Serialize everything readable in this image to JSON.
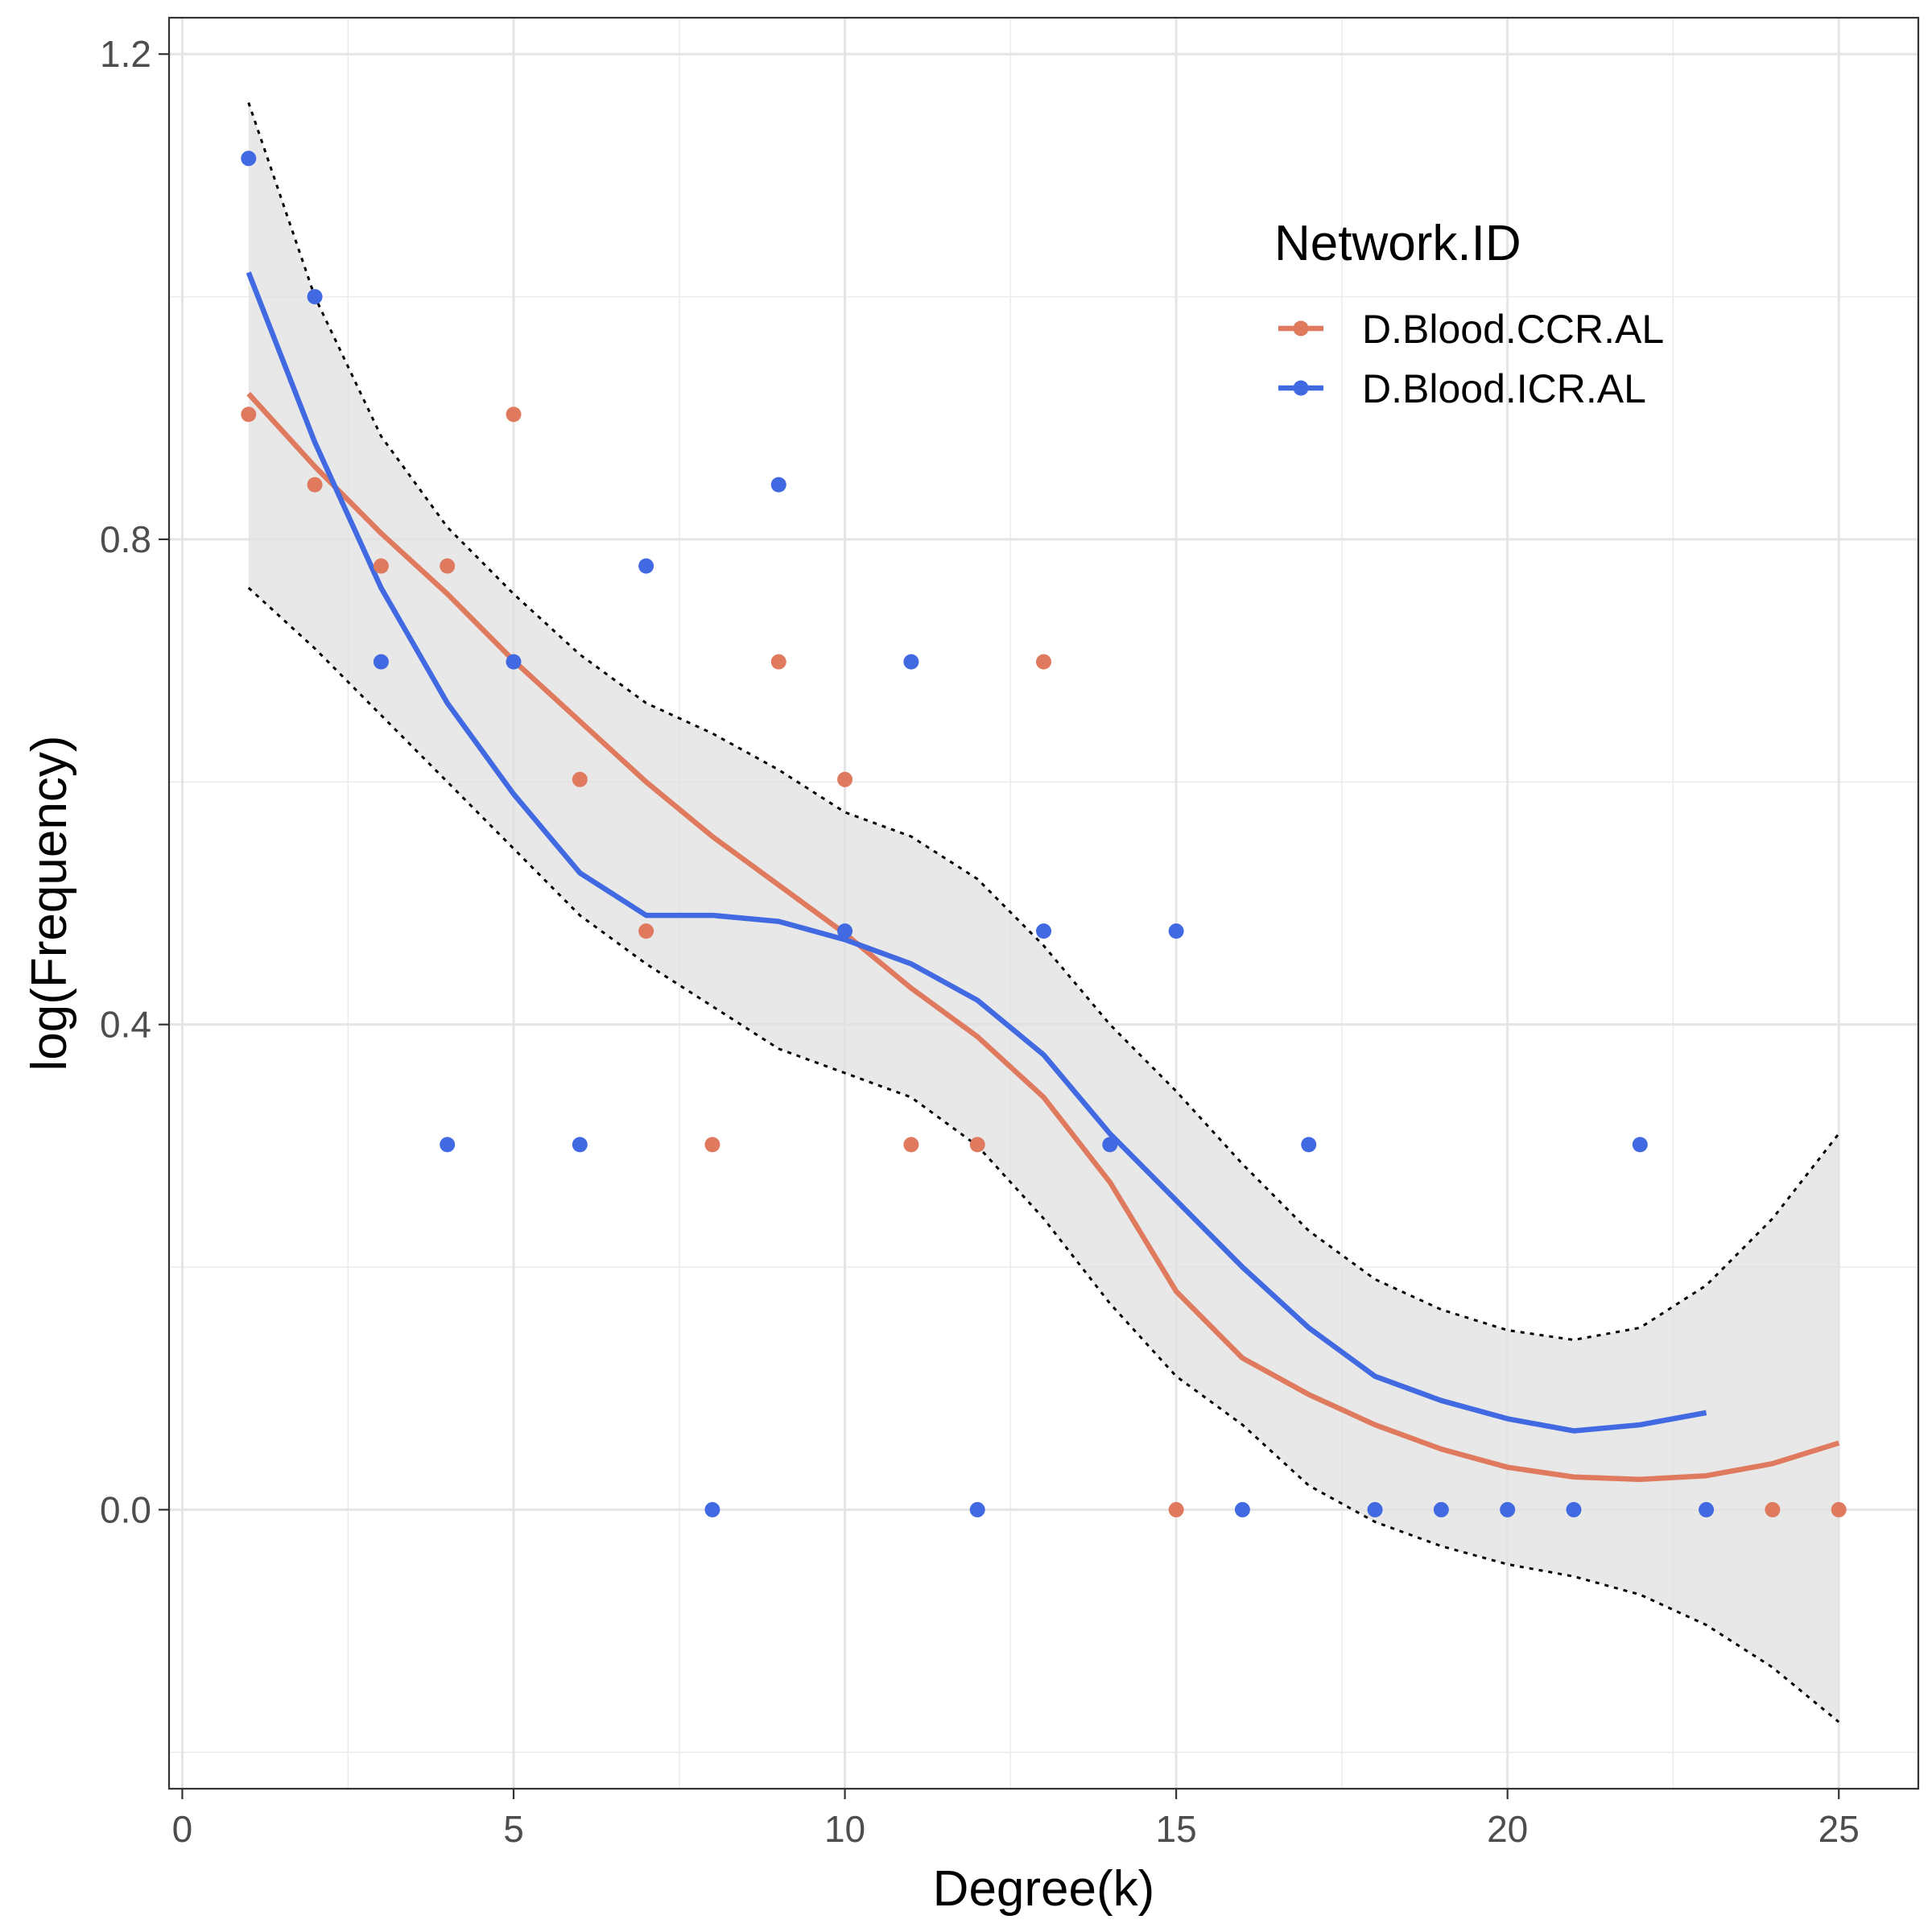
{
  "chart_data": {
    "type": "scatter",
    "xlabel": "Degree(k)",
    "ylabel": "log(Frequency)",
    "xlim": [
      -0.2,
      26.2
    ],
    "ylim": [
      -0.23,
      1.23
    ],
    "x_ticks": [
      0,
      5,
      10,
      15,
      20,
      25
    ],
    "x_tick_labels": [
      "0",
      "5",
      "10",
      "15",
      "20",
      "25"
    ],
    "y_ticks": [
      0.0,
      0.4,
      0.8,
      1.2
    ],
    "y_tick_labels": [
      "0.0",
      "0.4",
      "0.8",
      "1.2"
    ],
    "grid": true,
    "legend": {
      "title": "Network.ID",
      "position": "top-right",
      "entries": [
        "D.Blood.CCR.AL",
        "D.Blood.ICR.AL"
      ]
    },
    "series": [
      {
        "name": "D.Blood.CCR.AL",
        "color": "#E07A5F",
        "points": [
          [
            1,
            0.903
          ],
          [
            2,
            0.845
          ],
          [
            3,
            0.778
          ],
          [
            4,
            0.778
          ],
          [
            5,
            0.903
          ],
          [
            6,
            0.602
          ],
          [
            7,
            0.477
          ],
          [
            8,
            0.301
          ],
          [
            9,
            0.699
          ],
          [
            10,
            0.602
          ],
          [
            11,
            0.301
          ],
          [
            12,
            0.301
          ],
          [
            13,
            0.699
          ],
          [
            15,
            0.0
          ],
          [
            24,
            0.0
          ],
          [
            25,
            0.0
          ]
        ],
        "smooth": [
          [
            1,
            0.92
          ],
          [
            2,
            0.86
          ],
          [
            3,
            0.805
          ],
          [
            4,
            0.755
          ],
          [
            5,
            0.7
          ],
          [
            6,
            0.65
          ],
          [
            7,
            0.6
          ],
          [
            8,
            0.555
          ],
          [
            9,
            0.515
          ],
          [
            10,
            0.475
          ],
          [
            11,
            0.43
          ],
          [
            12,
            0.39
          ],
          [
            13,
            0.34
          ],
          [
            14,
            0.27
          ],
          [
            15,
            0.18
          ],
          [
            16,
            0.125
          ],
          [
            17,
            0.095
          ],
          [
            18,
            0.07
          ],
          [
            19,
            0.05
          ],
          [
            20,
            0.035
          ],
          [
            21,
            0.027
          ],
          [
            22,
            0.025
          ],
          [
            23,
            0.028
          ],
          [
            24,
            0.038
          ],
          [
            25,
            0.055
          ]
        ]
      },
      {
        "name": "D.Blood.ICR.AL",
        "color": "#4169E1",
        "points": [
          [
            1,
            1.114
          ],
          [
            2,
            1.0
          ],
          [
            3,
            0.699
          ],
          [
            4,
            0.301
          ],
          [
            5,
            0.699
          ],
          [
            6,
            0.301
          ],
          [
            7,
            0.778
          ],
          [
            8,
            0.0
          ],
          [
            9,
            0.845
          ],
          [
            10,
            0.477
          ],
          [
            11,
            0.699
          ],
          [
            12,
            0.0
          ],
          [
            13,
            0.477
          ],
          [
            14,
            0.301
          ],
          [
            15,
            0.477
          ],
          [
            16,
            0.0
          ],
          [
            17,
            0.301
          ],
          [
            18,
            0.0
          ],
          [
            19,
            0.0
          ],
          [
            20,
            0.0
          ],
          [
            21,
            0.0
          ],
          [
            22,
            0.301
          ],
          [
            23,
            0.0
          ]
        ],
        "smooth": [
          [
            1,
            1.02
          ],
          [
            2,
            0.88
          ],
          [
            3,
            0.76
          ],
          [
            4,
            0.665
          ],
          [
            5,
            0.59
          ],
          [
            6,
            0.525
          ],
          [
            7,
            0.49
          ],
          [
            8,
            0.49
          ],
          [
            9,
            0.485
          ],
          [
            10,
            0.47
          ],
          [
            11,
            0.45
          ],
          [
            12,
            0.42
          ],
          [
            13,
            0.375
          ],
          [
            14,
            0.31
          ],
          [
            15,
            0.255
          ],
          [
            16,
            0.2
          ],
          [
            17,
            0.15
          ],
          [
            18,
            0.11
          ],
          [
            19,
            0.09
          ],
          [
            20,
            0.075
          ],
          [
            21,
            0.065
          ],
          [
            22,
            0.07
          ],
          [
            23,
            0.08
          ]
        ]
      }
    ],
    "confidence_band": {
      "color": "#e0e0e0",
      "upper": [
        [
          1,
          1.16
        ],
        [
          2,
          1.0
        ],
        [
          3,
          0.885
        ],
        [
          4,
          0.81
        ],
        [
          5,
          0.755
        ],
        [
          6,
          0.705
        ],
        [
          7,
          0.665
        ],
        [
          8,
          0.64
        ],
        [
          9,
          0.61
        ],
        [
          10,
          0.575
        ],
        [
          11,
          0.555
        ],
        [
          12,
          0.52
        ],
        [
          13,
          0.465
        ],
        [
          14,
          0.4
        ],
        [
          15,
          0.345
        ],
        [
          16,
          0.285
        ],
        [
          17,
          0.23
        ],
        [
          18,
          0.19
        ],
        [
          19,
          0.165
        ],
        [
          20,
          0.148
        ],
        [
          21,
          0.14
        ],
        [
          22,
          0.15
        ],
        [
          23,
          0.185
        ],
        [
          24,
          0.24
        ],
        [
          25,
          0.31
        ]
      ],
      "lower": [
        [
          1,
          0.76
        ],
        [
          2,
          0.71
        ],
        [
          3,
          0.655
        ],
        [
          4,
          0.6
        ],
        [
          5,
          0.545
        ],
        [
          6,
          0.49
        ],
        [
          7,
          0.45
        ],
        [
          8,
          0.415
        ],
        [
          9,
          0.38
        ],
        [
          10,
          0.36
        ],
        [
          11,
          0.34
        ],
        [
          12,
          0.3
        ],
        [
          13,
          0.24
        ],
        [
          14,
          0.17
        ],
        [
          15,
          0.11
        ],
        [
          16,
          0.07
        ],
        [
          17,
          0.02
        ],
        [
          18,
          -0.01
        ],
        [
          19,
          -0.03
        ],
        [
          20,
          -0.045
        ],
        [
          21,
          -0.055
        ],
        [
          22,
          -0.07
        ],
        [
          23,
          -0.095
        ],
        [
          24,
          -0.13
        ],
        [
          25,
          -0.175
        ]
      ]
    }
  }
}
